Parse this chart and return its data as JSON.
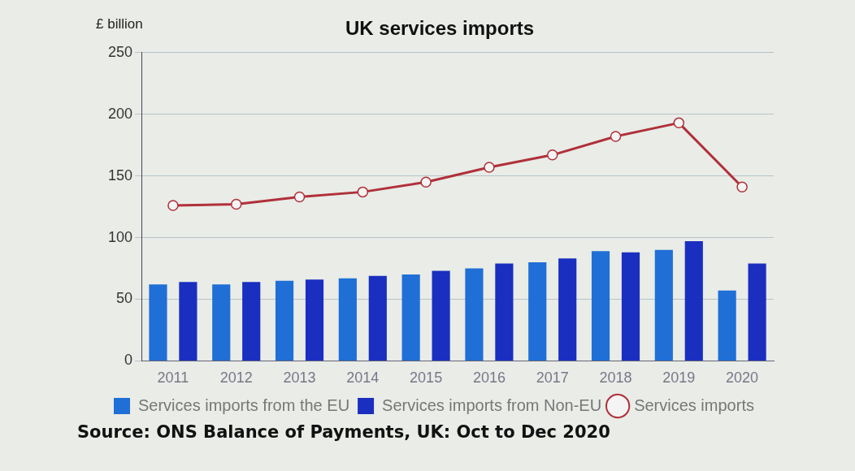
{
  "chart_data": {
    "type": "bar",
    "title": "UK services imports",
    "ylabel": "£ billion",
    "categories": [
      "2011",
      "2012",
      "2013",
      "2014",
      "2015",
      "2016",
      "2017",
      "2018",
      "2019",
      "2020"
    ],
    "series": [
      {
        "name": "Services imports from the EU",
        "color": "#1f6fd6",
        "values": [
          62,
          62,
          65,
          67,
          70,
          75,
          80,
          89,
          90,
          57
        ]
      },
      {
        "name": "Services imports from Non-EU",
        "color": "#1a2fc0",
        "values": [
          64,
          64,
          66,
          69,
          73,
          79,
          83,
          88,
          97,
          79
        ]
      },
      {
        "name": "Services imports",
        "type": "line",
        "color": "#b0303a",
        "values": [
          126,
          127,
          133,
          137,
          145,
          157,
          167,
          182,
          193,
          141
        ]
      }
    ],
    "ylim": [
      0,
      250
    ],
    "yticks": [
      0,
      50,
      100,
      150,
      200,
      250
    ],
    "grid": "y",
    "legend": "bottom left",
    "marker": "circle",
    "annotations": [
      "Source: ONS Balance of Payments, UK: Oct to Dec 2020"
    ]
  }
}
